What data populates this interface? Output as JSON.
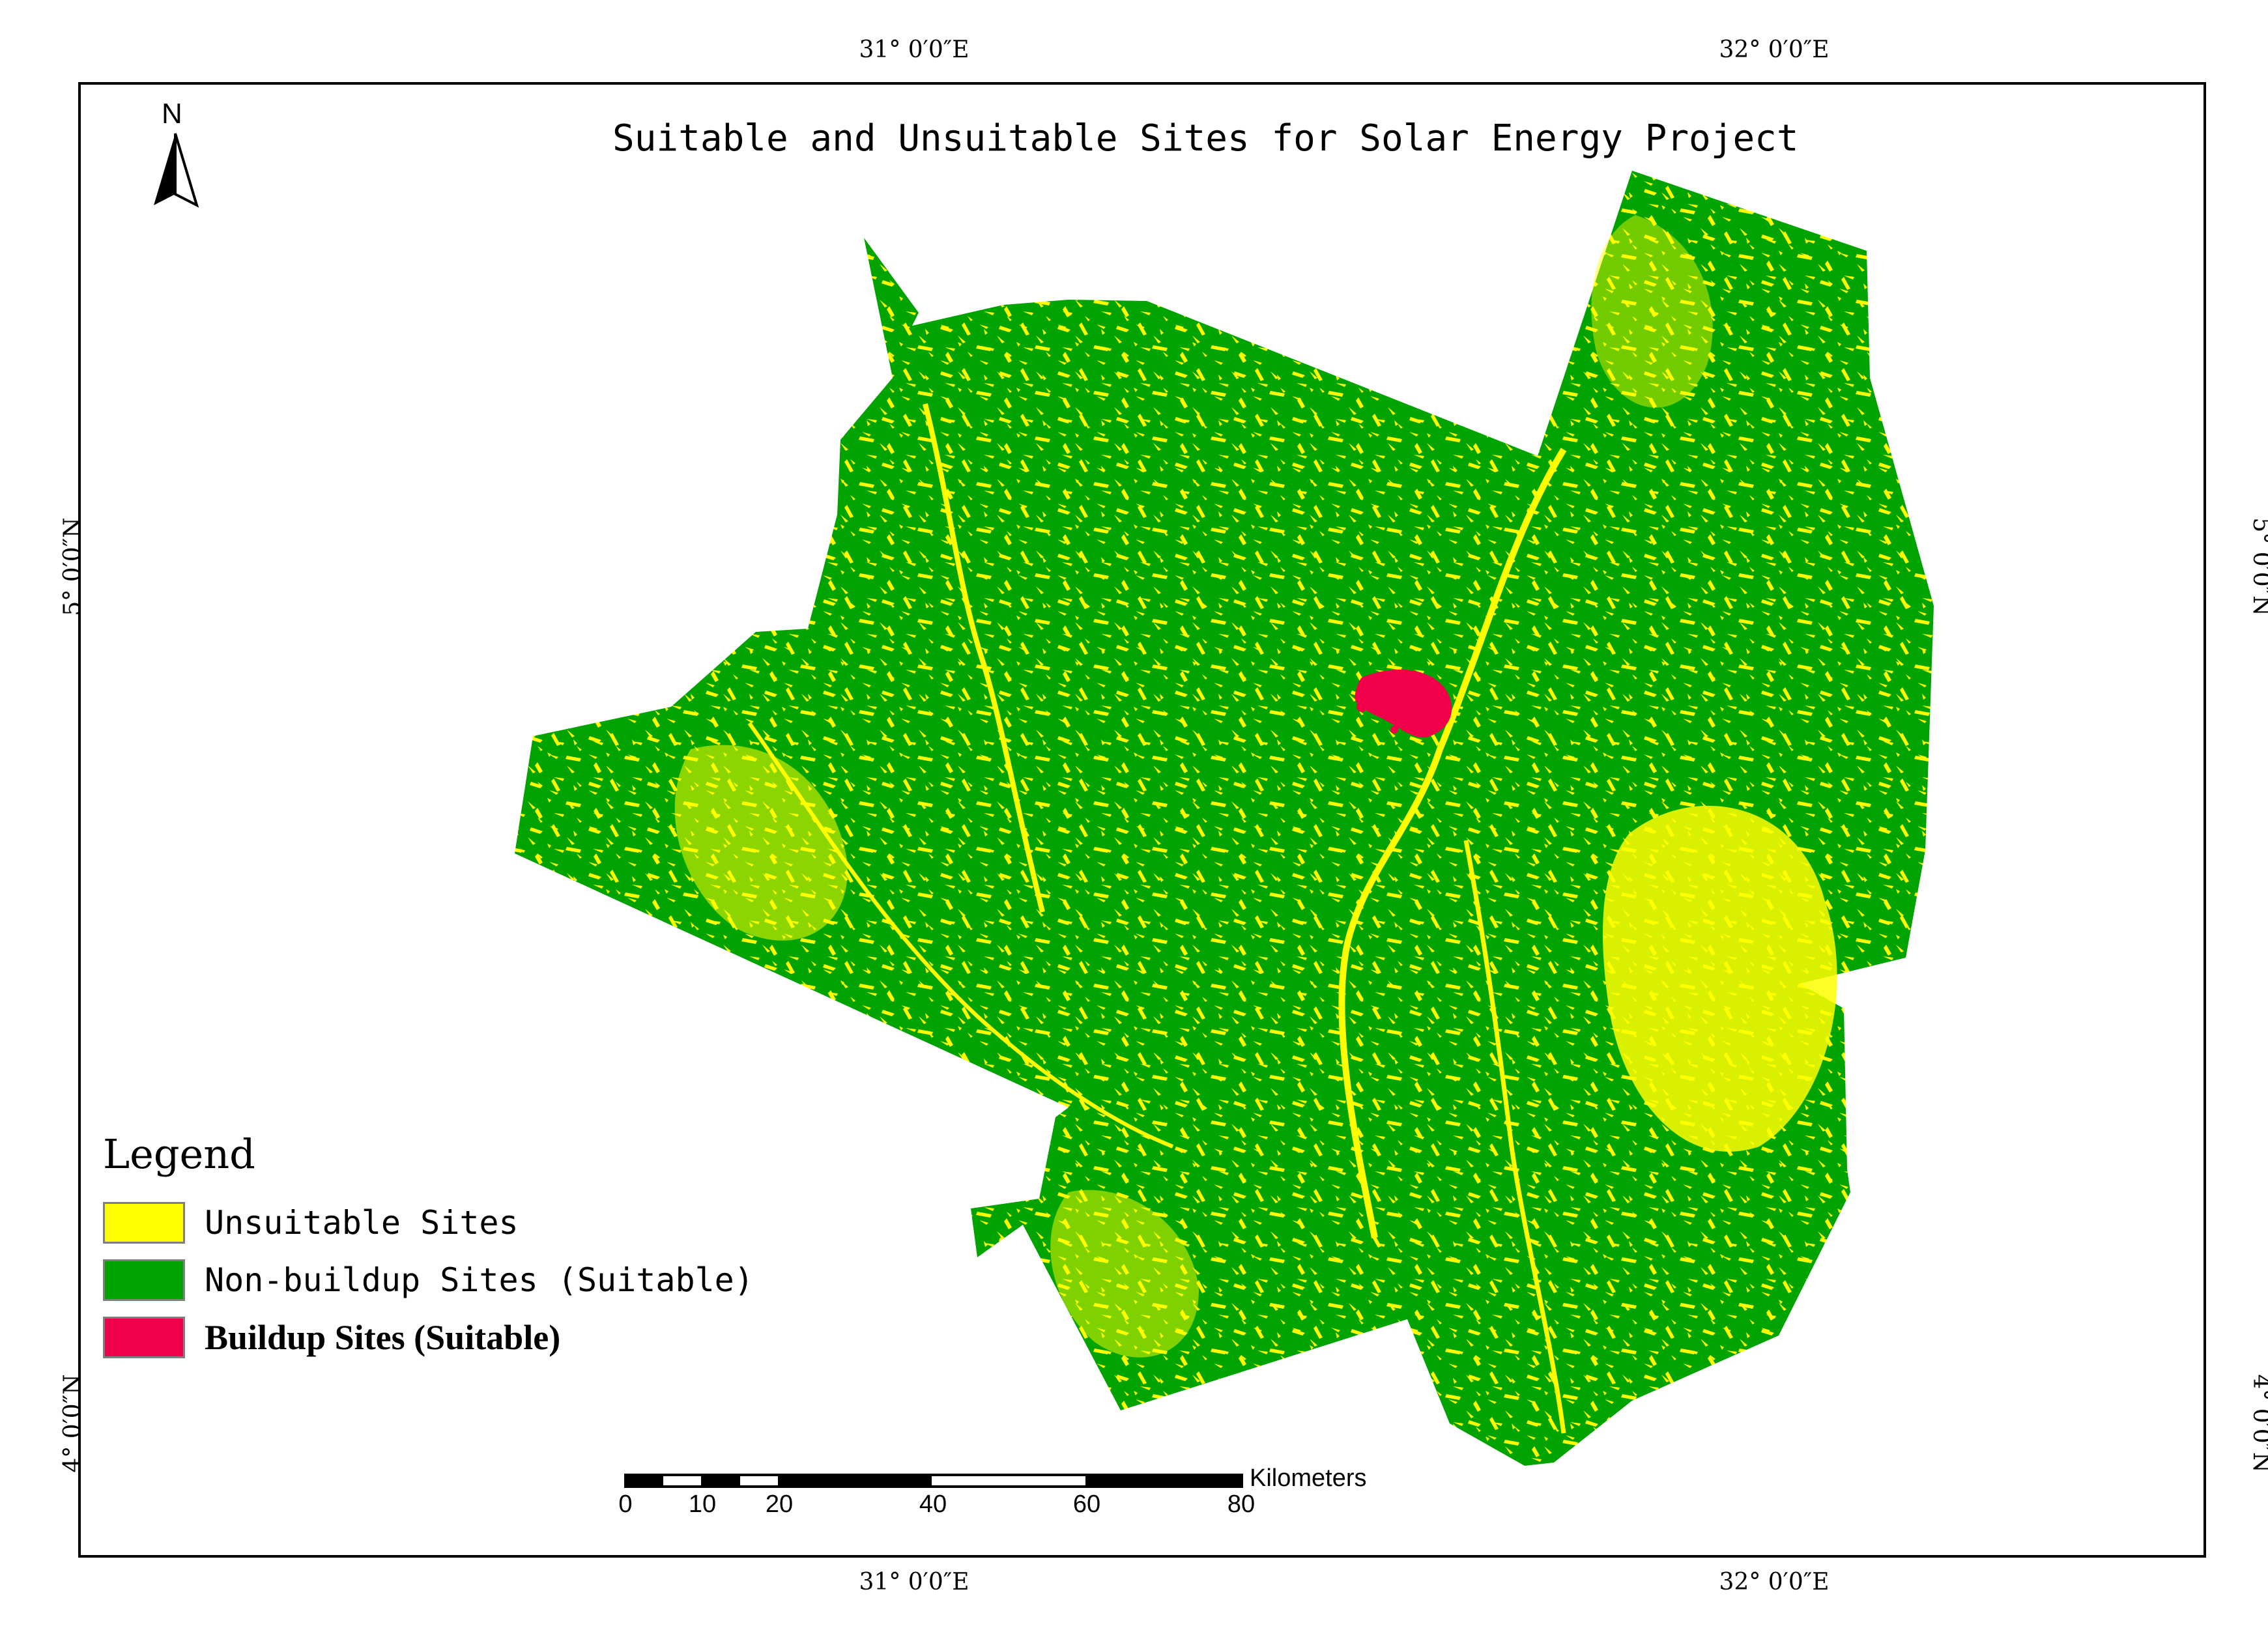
{
  "map": {
    "title": "Suitable and Unsuitable Sites for Solar Energy Project",
    "north_label": "N",
    "graticule": {
      "lon_top": [
        "31° 0′0″E",
        "32° 0′0″E"
      ],
      "lon_bottom": [
        "31° 0′0″E",
        "32° 0′0″E"
      ],
      "lat_left": [
        "5° 0′0″N",
        "4° 0′0″N"
      ],
      "lat_right": [
        "5° 0′0″N",
        "4° 0′0″N"
      ]
    },
    "colors": {
      "unsuitable": "#ffff00",
      "non_buildup": "#00a300",
      "buildup": "#f0004a"
    }
  },
  "legend": {
    "title": "Legend",
    "items": [
      {
        "label": "Unsuitable Sites",
        "color": "#ffff00"
      },
      {
        "label": "Non-buildup Sites (Suitable)",
        "color": "#00a300"
      },
      {
        "label": "Buildup Sites (Suitable)",
        "color": "#f0004a"
      }
    ]
  },
  "scale_bar": {
    "units": "Kilometers",
    "ticks": [
      "0",
      "10",
      "20",
      "40",
      "60",
      "80"
    ]
  }
}
